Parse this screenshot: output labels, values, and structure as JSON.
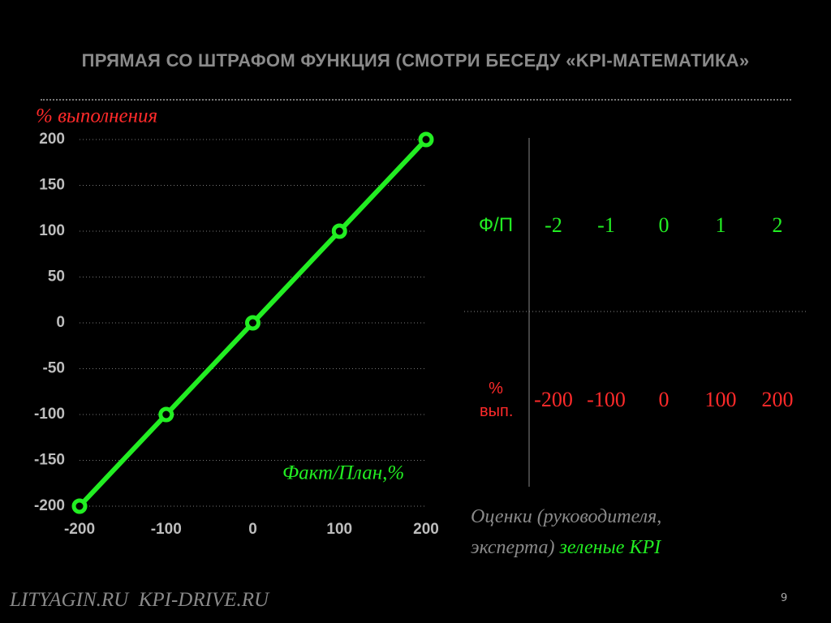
{
  "title": "ПРЯМАЯ СО ШТРАФОМ ФУНКЦИЯ (СМОТРИ БЕСЕДУ «KPI-МАТЕМАТИКА»",
  "chart_data": {
    "type": "line",
    "y_label": "% выполнения",
    "x_label": "Факт/План,%",
    "x": [
      -200,
      -100,
      0,
      100,
      200
    ],
    "series": [
      {
        "values": [
          -200,
          -100,
          0,
          100,
          200
        ],
        "color": "#22ee22"
      }
    ],
    "xlim": [
      -200,
      200
    ],
    "ylim": [
      -200,
      200
    ],
    "xticks": [
      -200,
      -100,
      0,
      100,
      200
    ],
    "yticks": [
      -200,
      -150,
      -100,
      -50,
      0,
      50,
      100,
      150,
      200
    ],
    "grid": true
  },
  "table": {
    "rows": [
      [
        "Ф/П",
        -2,
        -1,
        0,
        1,
        2
      ],
      [
        "% вып.",
        -200,
        -100,
        0,
        100,
        200
      ]
    ]
  },
  "note": {
    "text": "Оценки (руководителя, эксперта)",
    "highlight": "зеленые KPI"
  },
  "footer": "LITYAGIN.RU  KPI-DRIVE.RU",
  "page_number": "9"
}
